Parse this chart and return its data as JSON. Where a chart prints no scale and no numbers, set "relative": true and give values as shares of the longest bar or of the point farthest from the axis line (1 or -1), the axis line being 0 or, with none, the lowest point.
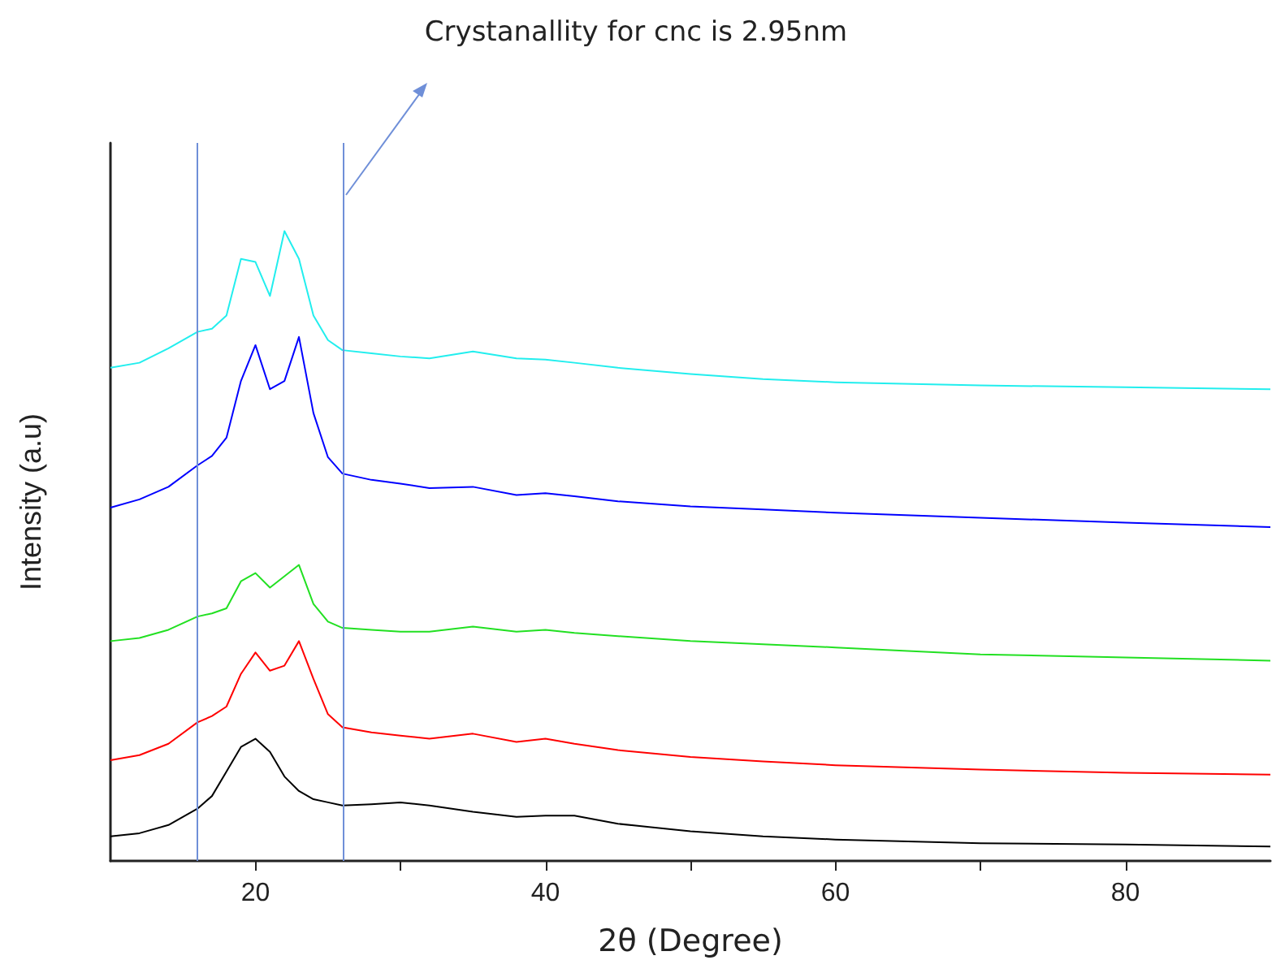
{
  "chart_data": {
    "type": "line",
    "relative": true,
    "xlabel": "2θ (Degree)",
    "ylabel": "Intensity (a.u)",
    "annotations": [
      "Crystanallity for cnc is 2.95nm"
    ],
    "x": [
      10,
      12,
      14,
      16,
      17,
      18,
      19,
      20,
      21,
      22,
      23,
      24,
      25,
      26,
      28,
      30,
      32,
      35,
      38,
      40,
      42,
      45,
      50,
      55,
      60,
      70,
      80,
      90
    ],
    "xlim": [
      10,
      90
    ],
    "xticks": [
      20,
      {
        "value": 30,
        "label": null
      },
      40,
      {
        "value": 50,
        "label": null
      },
      60,
      {
        "value": 70,
        "label": null
      },
      80
    ],
    "tick_labels": "x",
    "grid": false,
    "marker": "none",
    "ref_lines": [
      {
        "axis": "x",
        "value": 16,
        "color": "#6f8fd8"
      },
      {
        "axis": "x",
        "value": 26,
        "color": "#6f8fd8"
      }
    ],
    "series": [
      {
        "color": "#000000",
        "values": [
          0.039,
          0.044,
          0.057,
          0.083,
          0.103,
          0.142,
          0.181,
          0.194,
          0.173,
          0.134,
          0.111,
          0.098,
          0.093,
          0.088,
          0.09,
          0.093,
          0.088,
          0.078,
          0.07,
          0.072,
          0.072,
          0.059,
          0.047,
          0.039,
          0.034,
          0.028,
          0.026,
          0.023
        ]
      },
      {
        "color": "#ff0000",
        "values": [
          0.16,
          0.168,
          0.186,
          0.22,
          0.23,
          0.245,
          0.297,
          0.331,
          0.302,
          0.31,
          0.349,
          0.289,
          0.233,
          0.212,
          0.204,
          0.199,
          0.194,
          0.202,
          0.189,
          0.194,
          0.186,
          0.176,
          0.165,
          0.158,
          0.152,
          0.145,
          0.14,
          0.137
        ]
      },
      {
        "color": "#22e022",
        "values": [
          0.349,
          0.354,
          0.367,
          0.388,
          0.393,
          0.401,
          0.444,
          0.457,
          0.434,
          0.452,
          0.47,
          0.408,
          0.38,
          0.37,
          0.367,
          0.364,
          0.364,
          0.372,
          0.364,
          0.367,
          0.362,
          0.357,
          0.349,
          0.344,
          0.339,
          0.328,
          0.323,
          0.318
        ]
      },
      {
        "color": "#0000ff",
        "values": [
          0.561,
          0.574,
          0.594,
          0.628,
          0.643,
          0.672,
          0.762,
          0.819,
          0.749,
          0.762,
          0.832,
          0.711,
          0.641,
          0.615,
          0.605,
          0.599,
          0.592,
          0.594,
          0.581,
          0.584,
          0.579,
          0.571,
          0.563,
          0.558,
          0.553,
          0.545,
          0.537,
          0.53
        ]
      },
      {
        "color": "#22eeee",
        "values": [
          0.783,
          0.791,
          0.814,
          0.84,
          0.845,
          0.866,
          0.956,
          0.951,
          0.897,
          1.0,
          0.956,
          0.866,
          0.827,
          0.811,
          0.806,
          0.801,
          0.798,
          0.809,
          0.798,
          0.796,
          0.791,
          0.783,
          0.773,
          0.765,
          0.76,
          0.755,
          0.752,
          0.749
        ]
      }
    ]
  }
}
